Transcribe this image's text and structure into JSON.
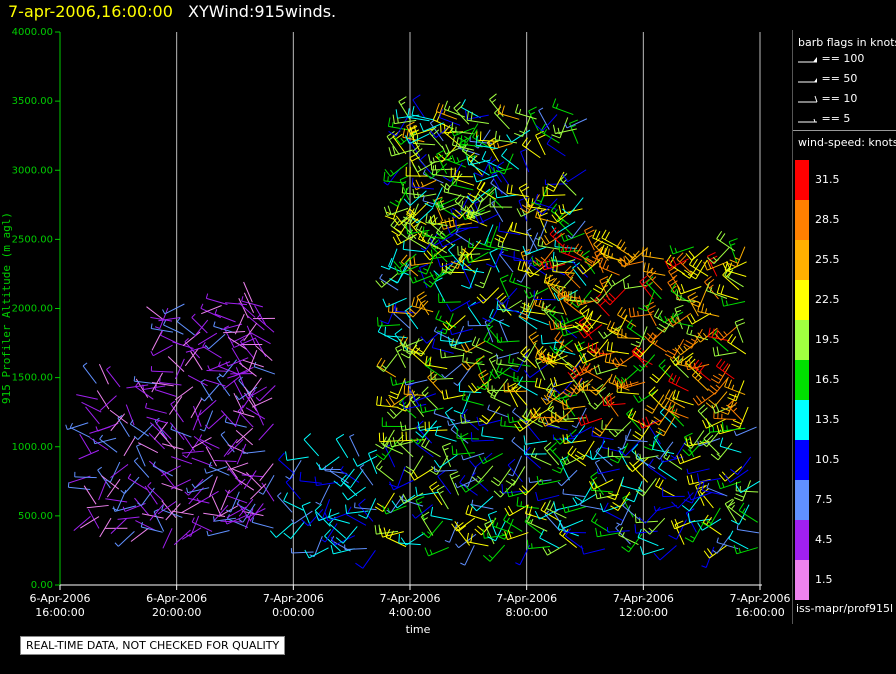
{
  "header": {
    "timestamp": "7-apr-2006,16:00:00",
    "product": "XYWind:915winds."
  },
  "notice": "REAL-TIME DATA, NOT CHECKED FOR QUALITY",
  "legend": {
    "barb_title": "barb flags in knots",
    "barb_flags": [
      "== 100",
      "== 50",
      "== 10",
      "== 5"
    ],
    "speed_title": "wind-speed: knots",
    "source": "iss-mapr/prof915l",
    "color_scale": [
      {
        "label": "31.5",
        "color": "#ff0000"
      },
      {
        "label": "28.5",
        "color": "#ff8000"
      },
      {
        "label": "25.5",
        "color": "#ffb000"
      },
      {
        "label": "22.5",
        "color": "#ffff00"
      },
      {
        "label": "19.5",
        "color": "#a0ff40"
      },
      {
        "label": "16.5",
        "color": "#00e000"
      },
      {
        "label": "13.5",
        "color": "#00ffff"
      },
      {
        "label": "10.5",
        "color": "#0000ff"
      },
      {
        "label": "7.5",
        "color": "#6090ff"
      },
      {
        "label": "4.5",
        "color": "#a020f0"
      },
      {
        "label": "1.5",
        "color": "#ee82ee"
      }
    ]
  },
  "chart_data": {
    "type": "scatter",
    "title": "",
    "xlabel": "time",
    "ylabel": "915 Profiler Altitude (m agl)",
    "ylim": [
      0,
      4000
    ],
    "yticks": [
      "0.00",
      "500.00",
      "1000.00",
      "1500.00",
      "2000.00",
      "2500.00",
      "3000.00",
      "3500.00",
      "4000.00"
    ],
    "xlim_hours": [
      0,
      24
    ],
    "xticks": [
      {
        "date": "6-Apr-2006",
        "time": "16:00:00"
      },
      {
        "date": "6-Apr-2006",
        "time": "20:00:00"
      },
      {
        "date": "7-Apr-2006",
        "time": "0:00:00"
      },
      {
        "date": "7-Apr-2006",
        "time": "4:00:00"
      },
      {
        "date": "7-Apr-2006",
        "time": "8:00:00"
      },
      {
        "date": "7-Apr-2006",
        "time": "12:00:00"
      },
      {
        "date": "7-Apr-2006",
        "time": "16:00:00"
      }
    ],
    "grid": "vertical lines at each x tick",
    "series": [
      {
        "segment": "6-Apr 17:30 to 7-Apr 0:00",
        "altitude_range_m": [
          300,
          2100
        ],
        "dominant_speed_kt": "1.5-10.5"
      },
      {
        "segment": "7-Apr 0:00 to 7-Apr 4:00",
        "altitude_range_m": [
          250,
          1700
        ],
        "dominant_speed_kt": "7.5-16.5"
      },
      {
        "segment": "7-Apr 3:30 to 7-Apr 16:00",
        "altitude_range_m": [
          250,
          3500
        ],
        "dominant_speed_kt": "7.5-31.5"
      }
    ]
  }
}
